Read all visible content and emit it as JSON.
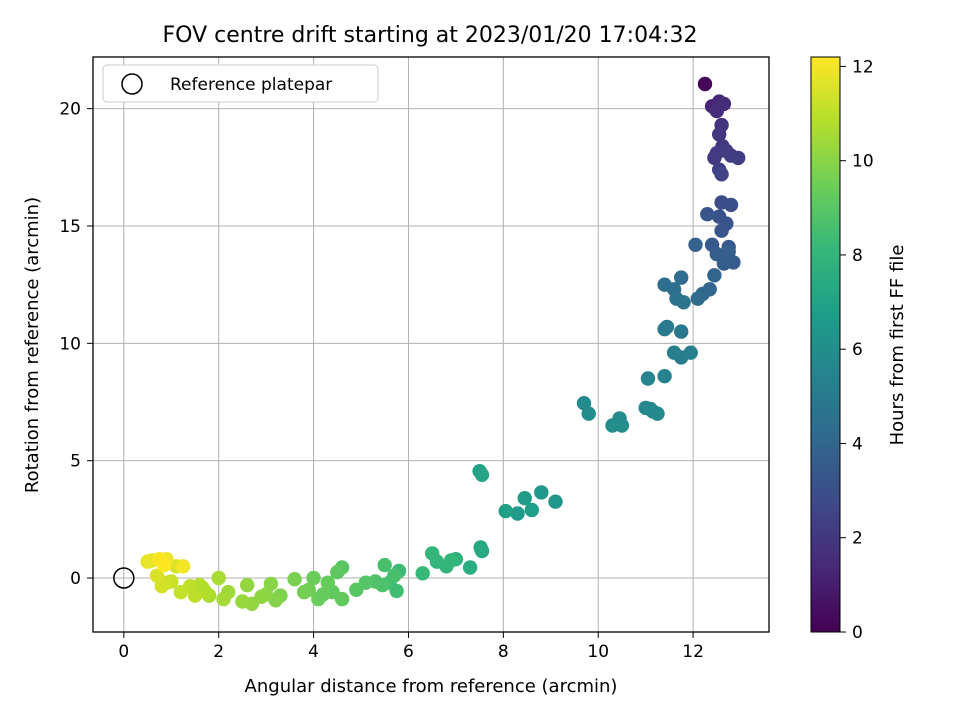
{
  "chart_data": {
    "type": "scatter",
    "title": "FOV centre drift starting at 2023/01/20 17:04:32",
    "xlabel": "Angular distance from reference (arcmin)",
    "ylabel": "Rotation from reference (arcmin)",
    "xlim": [
      -0.65,
      13.6
    ],
    "ylim": [
      -2.3,
      22.2
    ],
    "xticks": [
      0,
      2,
      4,
      6,
      8,
      10,
      12
    ],
    "yticks": [
      0,
      5,
      10,
      15,
      20
    ],
    "grid": true,
    "legend": {
      "position": "top-left",
      "entries": [
        "Reference platepar"
      ]
    },
    "reference_point": {
      "label": "Reference platepar",
      "x": 0,
      "y": 0
    },
    "colorbar": {
      "label": "Hours from first FF file",
      "range": [
        0,
        12.2
      ],
      "ticks": [
        0,
        2,
        4,
        6,
        8,
        10,
        12
      ],
      "colormap": [
        "#440154",
        "#482878",
        "#3e4989",
        "#31688e",
        "#26828e",
        "#1f9e89",
        "#35b779",
        "#6ece58",
        "#b5de2b",
        "#fde725"
      ]
    },
    "series": [
      {
        "x": [
          12.25,
          12.4,
          12.55,
          12.65,
          12.5,
          12.6,
          12.55,
          12.62,
          12.5,
          12.45,
          12.7,
          12.8,
          12.95,
          12.55,
          12.6,
          12.6,
          12.8,
          12.55,
          12.7,
          12.3,
          12.6,
          12.75,
          12.4,
          12.85,
          12.65,
          12.5,
          12.75,
          12.05,
          12.45,
          12.35,
          12.2,
          12.1,
          11.75,
          11.4,
          11.6,
          11.65,
          11.8,
          11.75,
          11.45,
          11.4,
          11.75,
          11.6,
          11.95,
          11.4,
          11.05,
          11.15,
          11.0,
          11.1,
          11.25,
          10.45,
          10.3,
          10.5,
          9.7,
          9.8,
          9.1,
          8.8,
          8.3,
          8.45,
          8.6,
          8.05,
          7.5,
          7.55,
          7.52,
          7.55,
          7.3,
          7.0,
          6.8,
          6.6,
          6.9,
          6.5,
          6.3,
          5.8,
          5.75,
          5.6,
          5.5,
          5.7,
          5.45,
          5.3,
          5.1,
          4.9,
          4.6,
          4.5,
          4.4,
          4.3,
          4.1,
          4.0,
          3.9,
          3.8,
          3.6,
          4.6,
          4.2,
          3.3,
          3.2,
          3.1,
          3.0,
          2.9,
          2.7,
          2.6,
          2.5,
          2.2,
          2.1,
          2.0,
          1.8,
          1.7,
          1.6,
          1.5,
          1.4,
          1.2,
          1.1,
          1.0,
          0.9,
          0.8,
          0.7,
          0.6,
          0.5,
          0.9,
          1.25,
          1.65,
          0.75,
          0.85
        ],
        "y": [
          21.05,
          20.1,
          20.3,
          20.2,
          19.9,
          19.3,
          18.9,
          18.4,
          18.1,
          17.9,
          18.2,
          18.0,
          17.9,
          17.4,
          17.2,
          16.0,
          15.9,
          15.4,
          15.1,
          15.5,
          14.8,
          14.1,
          14.2,
          13.45,
          13.4,
          13.8,
          13.9,
          14.2,
          12.9,
          12.3,
          12.1,
          11.9,
          12.8,
          12.5,
          12.3,
          11.9,
          11.75,
          10.5,
          10.7,
          10.6,
          9.4,
          9.6,
          9.6,
          8.6,
          8.5,
          7.1,
          7.25,
          7.2,
          7.0,
          6.8,
          6.5,
          6.5,
          7.45,
          7.0,
          3.25,
          3.65,
          2.75,
          3.4,
          2.9,
          2.85,
          4.55,
          4.4,
          1.3,
          1.15,
          0.45,
          0.8,
          0.5,
          0.7,
          0.75,
          1.05,
          0.2,
          0.3,
          -0.55,
          -0.2,
          0.55,
          0.1,
          -0.3,
          -0.15,
          -0.2,
          -0.5,
          0.45,
          0.25,
          -0.6,
          -0.2,
          -0.9,
          0.0,
          -0.5,
          -0.6,
          -0.05,
          -0.9,
          -0.7,
          -0.75,
          -0.95,
          -0.25,
          -0.7,
          -0.8,
          -1.1,
          -0.3,
          -1.0,
          -0.6,
          -0.9,
          0.0,
          -0.75,
          -0.55,
          -0.3,
          -0.75,
          -0.35,
          -0.6,
          0.5,
          -0.15,
          -0.2,
          -0.35,
          0.1,
          0.75,
          0.7,
          0.8,
          0.5,
          -0.4,
          0.8,
          0.55
        ],
        "hours": [
          0.2,
          1.3,
          1.4,
          1.5,
          1.6,
          1.8,
          1.9,
          2.0,
          2.1,
          2.1,
          2.2,
          2.2,
          2.3,
          2.4,
          2.5,
          2.9,
          3.0,
          3.1,
          3.2,
          3.3,
          3.3,
          3.4,
          3.4,
          3.5,
          3.6,
          3.6,
          3.7,
          3.8,
          3.9,
          4.0,
          4.1,
          4.2,
          4.3,
          4.4,
          4.5,
          4.6,
          4.7,
          4.9,
          5.0,
          5.0,
          5.1,
          5.2,
          5.3,
          5.4,
          5.5,
          5.6,
          5.6,
          5.7,
          5.8,
          5.9,
          6.0,
          6.0,
          5.8,
          5.9,
          6.4,
          6.5,
          6.6,
          6.7,
          6.8,
          6.9,
          7.0,
          7.1,
          7.3,
          7.4,
          7.6,
          7.8,
          7.9,
          8.0,
          8.1,
          8.1,
          8.2,
          8.3,
          8.4,
          8.5,
          8.6,
          8.6,
          8.7,
          8.8,
          8.9,
          9.0,
          9.0,
          9.1,
          9.2,
          9.3,
          9.4,
          9.4,
          9.5,
          9.6,
          9.7,
          9.2,
          9.3,
          9.8,
          9.9,
          10.0,
          10.0,
          10.1,
          10.2,
          10.2,
          10.3,
          10.4,
          10.5,
          10.6,
          10.7,
          10.8,
          10.9,
          11.0,
          11.0,
          11.1,
          11.5,
          11.2,
          11.3,
          11.4,
          11.5,
          11.7,
          11.8,
          11.9,
          12.0,
          10.8,
          12.1,
          12.2
        ]
      }
    ]
  }
}
